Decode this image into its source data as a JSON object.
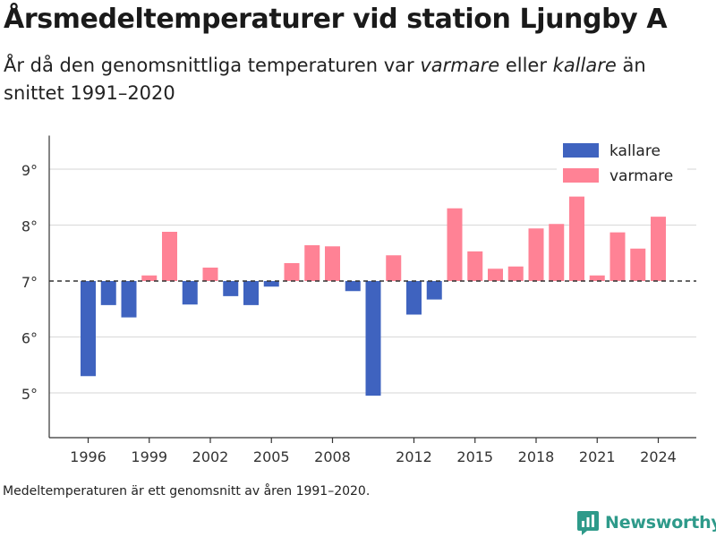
{
  "header": {
    "title": "Årsmedeltemperaturer vid station Ljungby A",
    "subtitle_part1": "År då den genomsnittliga temperaturen var ",
    "subtitle_em1": "varmare",
    "subtitle_part2": " eller ",
    "subtitle_em2": "kallare",
    "subtitle_part3": " än snittet 1991–2020"
  },
  "footnote": "Medeltemperaturen är ett genomsnitt av åren 1991–2020.",
  "brand": {
    "name": "Newsworthy",
    "icon": "newsworthy-logo-icon"
  },
  "colors": {
    "kallare": "#3f63bf",
    "varmare": "#ff8295",
    "baseline": "#333333",
    "grid": "#dddddd",
    "axis": "#333333"
  },
  "chart_data": {
    "type": "bar",
    "baseline": 7,
    "x": [
      1996,
      1997,
      1998,
      1999,
      2000,
      2001,
      2002,
      2003,
      2004,
      2005,
      2006,
      2007,
      2008,
      2009,
      2010,
      2011,
      2012,
      2013,
      2014,
      2015,
      2016,
      2017,
      2018,
      2019,
      2020,
      2021,
      2022,
      2023,
      2024
    ],
    "values": [
      5.3,
      6.57,
      6.35,
      7.1,
      7.88,
      6.58,
      7.24,
      6.73,
      6.57,
      6.9,
      7.32,
      7.64,
      7.62,
      6.82,
      4.95,
      7.46,
      6.4,
      6.67,
      8.3,
      7.53,
      7.22,
      7.26,
      7.94,
      8.02,
      8.51,
      7.1,
      7.87,
      7.58,
      8.15
    ],
    "series": [
      {
        "name": "kallare",
        "color": "#3f63bf"
      },
      {
        "name": "varmare",
        "color": "#ff8295"
      }
    ],
    "xticks": [
      1996,
      1999,
      2002,
      2005,
      2008,
      2012,
      2015,
      2018,
      2021,
      2024
    ],
    "yticks": [
      5,
      6,
      7,
      8,
      9
    ],
    "ytick_labels": [
      "5°",
      "6°",
      "7°",
      "8°",
      "9°"
    ],
    "ylim": [
      4.2,
      9.6
    ],
    "legend_position": "top-right",
    "grid": true
  }
}
